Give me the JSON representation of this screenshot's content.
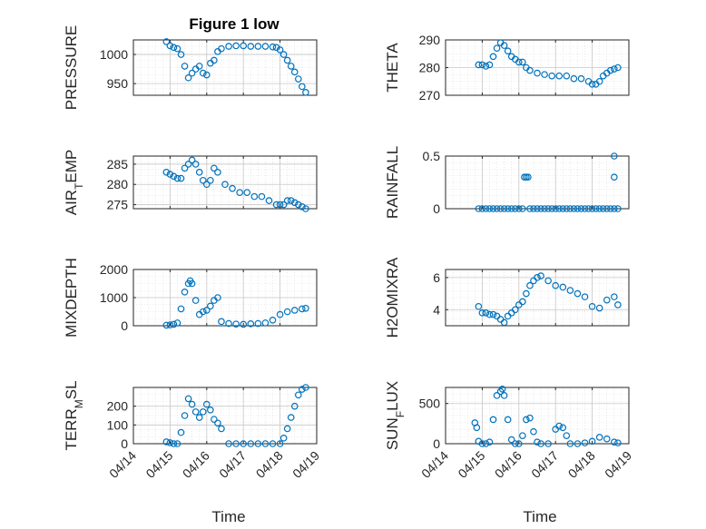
{
  "figure": {
    "title": "Figure 1 low",
    "xlabel": "Time",
    "colors": {
      "marker": "#0072BD",
      "axis": "#262626",
      "grid": "#dcdcdc"
    }
  },
  "chart_data": [
    {
      "type": "scatter",
      "ylabel": "PRESSURE",
      "ylabel_sub": "",
      "ylabel_rest": "",
      "xlim": [
        0,
        5
      ],
      "ylim": [
        930,
        1025
      ],
      "yticks": [
        950,
        1000
      ],
      "xticks": [
        "04/14",
        "04/15",
        "04/16",
        "04/17",
        "04/18",
        "04/19"
      ],
      "show_xticklabels": false,
      "x": [
        0.9,
        1.0,
        1.1,
        1.2,
        1.3,
        1.4,
        1.5,
        1.6,
        1.7,
        1.8,
        1.9,
        2.0,
        2.1,
        2.2,
        2.3,
        2.4,
        2.6,
        2.8,
        3.0,
        3.2,
        3.4,
        3.6,
        3.8,
        3.9,
        4.0,
        4.1,
        4.2,
        4.3,
        4.4,
        4.5,
        4.6,
        4.7
      ],
      "y": [
        1022,
        1015,
        1012,
        1010,
        1000,
        980,
        960,
        968,
        975,
        980,
        968,
        965,
        985,
        990,
        1005,
        1010,
        1014,
        1015,
        1015,
        1014,
        1014,
        1014,
        1013,
        1012,
        1008,
        1000,
        990,
        980,
        970,
        958,
        945,
        935
      ]
    },
    {
      "type": "scatter",
      "ylabel": "THETA",
      "ylabel_sub": "",
      "ylabel_rest": "",
      "xlim": [
        0,
        5
      ],
      "ylim": [
        270,
        290
      ],
      "yticks": [
        270,
        280,
        290
      ],
      "xticks": [
        "04/14",
        "04/15",
        "04/16",
        "04/17",
        "04/18",
        "04/19"
      ],
      "show_xticklabels": false,
      "x": [
        0.9,
        1.0,
        1.1,
        1.2,
        1.3,
        1.4,
        1.5,
        1.6,
        1.7,
        1.8,
        1.9,
        2.0,
        2.1,
        2.2,
        2.3,
        2.5,
        2.7,
        2.9,
        3.1,
        3.3,
        3.5,
        3.7,
        3.9,
        4.0,
        4.1,
        4.2,
        4.3,
        4.4,
        4.5,
        4.6,
        4.7
      ],
      "y": [
        281,
        281,
        280.5,
        281,
        284,
        287,
        289,
        288,
        286,
        284,
        283,
        282,
        282,
        280,
        279,
        278,
        277.5,
        277,
        277,
        277,
        276,
        276,
        275,
        274,
        274,
        275,
        277,
        278,
        279,
        279.5,
        280
      ]
    },
    {
      "type": "scatter",
      "ylabel": "AIR",
      "ylabel_sub": "T",
      "ylabel_rest": "EMP",
      "xlim": [
        0,
        5
      ],
      "ylim": [
        274,
        287
      ],
      "yticks": [
        275,
        280,
        285
      ],
      "xticks": [
        "04/14",
        "04/15",
        "04/16",
        "04/17",
        "04/18",
        "04/19"
      ],
      "show_xticklabels": false,
      "x": [
        0.9,
        1.0,
        1.1,
        1.2,
        1.3,
        1.4,
        1.5,
        1.6,
        1.7,
        1.8,
        1.9,
        2.0,
        2.1,
        2.2,
        2.3,
        2.5,
        2.7,
        2.9,
        3.1,
        3.3,
        3.5,
        3.7,
        3.9,
        4.0,
        4.1,
        4.2,
        4.3,
        4.4,
        4.5,
        4.6,
        4.7
      ],
      "y": [
        283,
        282.5,
        282,
        281.5,
        281.5,
        284,
        285,
        286,
        285,
        283,
        281,
        280,
        281,
        284,
        283,
        280,
        279,
        278,
        278,
        277,
        277,
        276,
        275,
        275,
        275,
        276,
        276,
        275.5,
        275,
        274.5,
        274
      ]
    },
    {
      "type": "scatter",
      "ylabel": "RAINFALL",
      "ylabel_sub": "",
      "ylabel_rest": "",
      "xlim": [
        0,
        5
      ],
      "ylim": [
        0,
        0.5
      ],
      "yticks": [
        0,
        0.5
      ],
      "xticks": [
        "04/14",
        "04/15",
        "04/16",
        "04/17",
        "04/18",
        "04/19"
      ],
      "show_xticklabels": false,
      "x": [
        0.9,
        1.0,
        1.1,
        1.2,
        1.3,
        1.4,
        1.5,
        1.6,
        1.7,
        1.8,
        1.9,
        2.0,
        2.1,
        2.15,
        2.2,
        2.25,
        2.3,
        2.4,
        2.5,
        2.6,
        2.7,
        2.8,
        2.9,
        3.0,
        3.1,
        3.2,
        3.3,
        3.4,
        3.5,
        3.6,
        3.7,
        3.8,
        3.9,
        4.0,
        4.1,
        4.2,
        4.3,
        4.4,
        4.5,
        4.6,
        4.6,
        4.6,
        4.7
      ],
      "y": [
        0,
        0,
        0,
        0,
        0,
        0,
        0,
        0,
        0,
        0,
        0,
        0,
        0,
        0.3,
        0.3,
        0.3,
        0,
        0,
        0,
        0,
        0,
        0,
        0,
        0,
        0,
        0,
        0,
        0,
        0,
        0,
        0,
        0,
        0,
        0,
        0,
        0,
        0,
        0,
        0,
        0,
        0.3,
        0.5,
        0
      ]
    },
    {
      "type": "scatter",
      "ylabel": "MIXDEPTH",
      "ylabel_sub": "",
      "ylabel_rest": "",
      "xlim": [
        0,
        5
      ],
      "ylim": [
        0,
        2000
      ],
      "yticks": [
        0,
        1000,
        2000
      ],
      "xticks": [
        "04/14",
        "04/15",
        "04/16",
        "04/17",
        "04/18",
        "04/19"
      ],
      "show_xticklabels": false,
      "x": [
        0.9,
        1.0,
        1.1,
        1.2,
        1.3,
        1.4,
        1.5,
        1.55,
        1.6,
        1.7,
        1.8,
        1.9,
        2.0,
        2.1,
        2.2,
        2.3,
        2.4,
        2.6,
        2.8,
        3.0,
        3.2,
        3.4,
        3.6,
        3.8,
        4.0,
        4.2,
        4.4,
        4.6,
        4.7
      ],
      "y": [
        20,
        30,
        50,
        100,
        600,
        1200,
        1500,
        1600,
        1500,
        900,
        400,
        500,
        550,
        700,
        900,
        1000,
        150,
        80,
        60,
        50,
        70,
        80,
        100,
        200,
        400,
        500,
        550,
        600,
        620
      ]
    },
    {
      "type": "scatter",
      "ylabel": "H2OMIXRA",
      "ylabel_sub": "",
      "ylabel_rest": "",
      "xlim": [
        0,
        5
      ],
      "ylim": [
        3,
        6.5
      ],
      "yticks": [
        4,
        6
      ],
      "xticks": [
        "04/14",
        "04/15",
        "04/16",
        "04/17",
        "04/18",
        "04/19"
      ],
      "show_xticklabels": false,
      "x": [
        0.9,
        1.0,
        1.1,
        1.2,
        1.3,
        1.4,
        1.5,
        1.6,
        1.7,
        1.8,
        1.9,
        2.0,
        2.1,
        2.2,
        2.3,
        2.4,
        2.5,
        2.6,
        2.8,
        3.0,
        3.2,
        3.4,
        3.6,
        3.8,
        4.0,
        4.2,
        4.4,
        4.6,
        4.7
      ],
      "y": [
        4.2,
        3.8,
        3.8,
        3.7,
        3.7,
        3.6,
        3.4,
        3.2,
        3.6,
        3.8,
        4.0,
        4.3,
        4.5,
        5.0,
        5.5,
        5.8,
        6.0,
        6.1,
        5.8,
        5.5,
        5.4,
        5.2,
        5.0,
        4.8,
        4.2,
        4.1,
        4.6,
        4.8,
        4.3
      ]
    },
    {
      "type": "scatter",
      "ylabel": "TERR",
      "ylabel_sub": "M",
      "ylabel_rest": "SL",
      "xlim": [
        0,
        5
      ],
      "ylim": [
        0,
        300
      ],
      "yticks": [
        0,
        100,
        200
      ],
      "xticks": [
        "04/14",
        "04/15",
        "04/16",
        "04/17",
        "04/18",
        "04/19"
      ],
      "show_xticklabels": true,
      "x": [
        0.9,
        1.0,
        1.1,
        1.2,
        1.3,
        1.4,
        1.5,
        1.6,
        1.7,
        1.8,
        1.9,
        2.0,
        2.1,
        2.2,
        2.3,
        2.4,
        2.6,
        2.8,
        3.0,
        3.2,
        3.4,
        3.6,
        3.8,
        4.0,
        4.1,
        4.2,
        4.3,
        4.4,
        4.5,
        4.6,
        4.7
      ],
      "y": [
        10,
        5,
        0,
        0,
        60,
        150,
        240,
        210,
        170,
        140,
        170,
        210,
        180,
        130,
        110,
        80,
        0,
        0,
        0,
        0,
        0,
        0,
        0,
        0,
        30,
        80,
        140,
        200,
        260,
        290,
        300
      ]
    },
    {
      "type": "scatter",
      "ylabel": "SUN",
      "ylabel_sub": "F",
      "ylabel_rest": "LUX",
      "xlim": [
        0,
        5
      ],
      "ylim": [
        0,
        700
      ],
      "yticks": [
        0,
        500
      ],
      "xticks": [
        "04/14",
        "04/15",
        "04/16",
        "04/17",
        "04/18",
        "04/19"
      ],
      "show_xticklabels": true,
      "x": [
        0.8,
        0.85,
        0.9,
        1.0,
        1.1,
        1.2,
        1.3,
        1.4,
        1.5,
        1.55,
        1.6,
        1.7,
        1.8,
        1.9,
        2.0,
        2.1,
        2.2,
        2.3,
        2.4,
        2.5,
        2.6,
        2.8,
        3.0,
        3.1,
        3.2,
        3.3,
        3.4,
        3.6,
        3.8,
        4.0,
        4.2,
        4.4,
        4.6,
        4.7
      ],
      "y": [
        260,
        200,
        30,
        0,
        0,
        20,
        300,
        600,
        650,
        680,
        600,
        300,
        50,
        0,
        0,
        100,
        300,
        320,
        150,
        20,
        0,
        0,
        180,
        220,
        200,
        100,
        0,
        0,
        10,
        30,
        80,
        60,
        20,
        10
      ]
    }
  ]
}
